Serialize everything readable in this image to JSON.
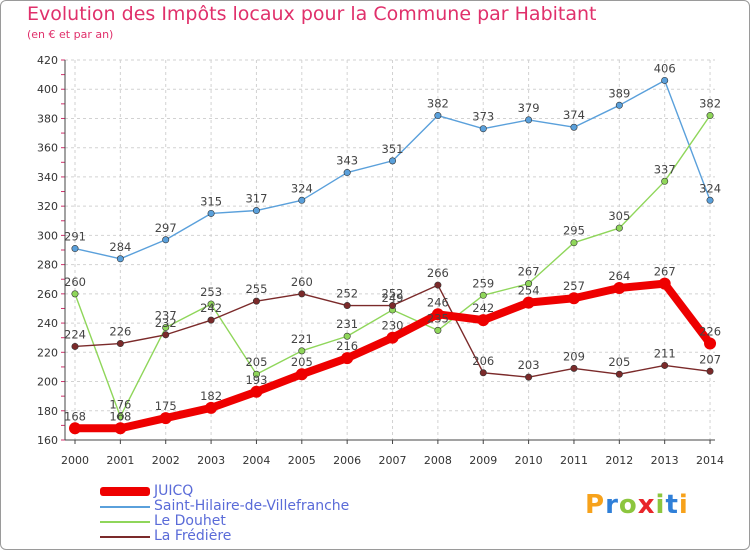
{
  "header": {
    "title": "Evolution des Impôts locaux pour la Commune par Habitant",
    "subtitle": "(en € et par an)"
  },
  "brand": {
    "letters": [
      "P",
      "r",
      "o",
      "x",
      "i",
      "t",
      "i"
    ],
    "colors": [
      "#f7a21b",
      "#2f7fd8",
      "#8cc63e",
      "#e8262a",
      "#8cc63e",
      "#2f7fd8",
      "#f7a21b"
    ]
  },
  "chart_data": {
    "type": "line",
    "title": "Evolution des Impôts locaux pour la Commune par Habitant",
    "subtitle": "(en € et par an)",
    "xlabel": "",
    "ylabel": "",
    "ylim": [
      160,
      420
    ],
    "yticks": [
      160,
      180,
      200,
      220,
      240,
      260,
      280,
      300,
      320,
      340,
      360,
      380,
      400,
      420
    ],
    "categories": [
      "2000",
      "2001",
      "2002",
      "2003",
      "2004",
      "2005",
      "2006",
      "2007",
      "2008",
      "2009",
      "2010",
      "2011",
      "2012",
      "2013",
      "2014"
    ],
    "grid": true,
    "legend_position": "bottom-left",
    "series": [
      {
        "name": "JUICQ",
        "color": "#ee0000",
        "values": [
          168,
          168,
          175,
          182,
          193,
          205,
          216,
          230,
          246,
          242,
          254,
          257,
          264,
          267,
          226
        ],
        "labels": [
          "168",
          "168",
          "175",
          "182",
          "193",
          "205",
          "216",
          "230",
          "246",
          "242",
          "254",
          "257",
          "264",
          "267",
          "226"
        ]
      },
      {
        "name": "Saint-Hilaire-de-Villefranche",
        "color": "#5aa0db",
        "values": [
          291,
          284,
          297,
          315,
          317,
          324,
          343,
          351,
          382,
          373,
          379,
          374,
          389,
          406,
          324
        ],
        "labels": [
          "291",
          "284",
          "297",
          "315",
          "317",
          "324",
          "343",
          "351",
          "382",
          "373",
          "379",
          "374",
          "389",
          "406",
          "324"
        ]
      },
      {
        "name": "Le Douhet",
        "color": "#8fd65a",
        "values": [
          260,
          176,
          237,
          253,
          205,
          221,
          231,
          249,
          235,
          259,
          267,
          295,
          305,
          337,
          382
        ],
        "labels": [
          "260",
          "176",
          "237",
          "253",
          "205",
          "221",
          "231",
          "249",
          "235",
          "259",
          "267",
          "295",
          "305",
          "337",
          "382"
        ]
      },
      {
        "name": "La Frédière",
        "color": "#7b2a2a",
        "values": [
          224,
          226,
          232,
          242,
          255,
          260,
          252,
          252,
          266,
          206,
          203,
          209,
          205,
          211,
          207
        ],
        "labels": [
          "224",
          "226",
          "232",
          "242",
          "255",
          "260",
          "252",
          "252",
          "266",
          "206",
          "203",
          "209",
          "205",
          "211",
          "207"
        ]
      }
    ]
  }
}
